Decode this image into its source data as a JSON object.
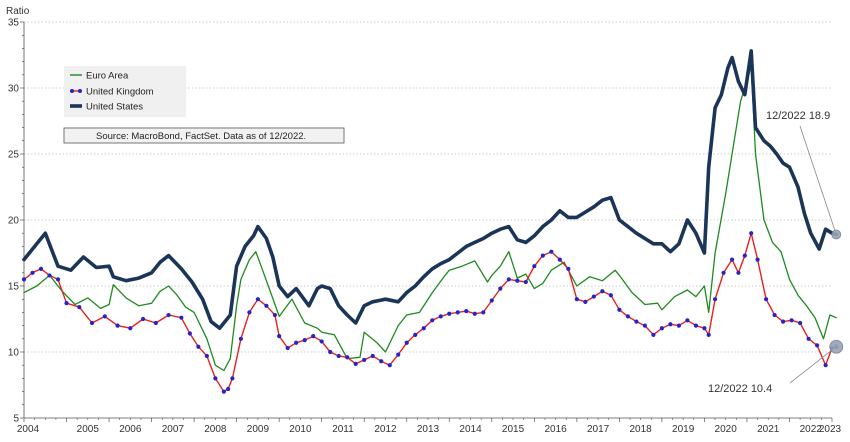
{
  "chart_data": {
    "type": "line",
    "ylabel": "Ratio",
    "ylim": [
      5,
      35
    ],
    "y_ticks": [
      "5",
      "10",
      "15",
      "20",
      "25",
      "30",
      "35"
    ],
    "x_ticks": [
      "2004",
      "2005",
      "2006",
      "2007",
      "2008",
      "2009",
      "2010",
      "2011",
      "2012",
      "2013",
      "2014",
      "2015",
      "2016",
      "2017",
      "2018",
      "2019",
      "2020",
      "2021",
      "2022",
      "2023"
    ],
    "xlim": [
      2004.0,
      2023.0
    ],
    "grid": true,
    "legend_placement": "top-left",
    "source_note": "Source:  MacroBond, FactSet.  Data as of 12/2022.",
    "series": [
      {
        "name": "Euro Area",
        "color": "#1f8a1f",
        "style": "thin-line",
        "points": [
          [
            2004.0,
            14.5
          ],
          [
            2004.3,
            15.0
          ],
          [
            2004.6,
            15.8
          ],
          [
            2004.9,
            14.6
          ],
          [
            2005.2,
            13.6
          ],
          [
            2005.5,
            14.1
          ],
          [
            2005.8,
            13.3
          ],
          [
            2006.0,
            13.6
          ],
          [
            2006.1,
            15.1
          ],
          [
            2006.4,
            14.1
          ],
          [
            2006.7,
            13.5
          ],
          [
            2007.0,
            13.7
          ],
          [
            2007.2,
            14.6
          ],
          [
            2007.4,
            15.0
          ],
          [
            2007.6,
            14.3
          ],
          [
            2007.8,
            13.4
          ],
          [
            2008.0,
            13.0
          ],
          [
            2008.3,
            11.0
          ],
          [
            2008.5,
            9.0
          ],
          [
            2008.7,
            8.6
          ],
          [
            2008.85,
            9.5
          ],
          [
            2009.0,
            13.5
          ],
          [
            2009.1,
            15.5
          ],
          [
            2009.3,
            17.0
          ],
          [
            2009.45,
            17.6
          ],
          [
            2009.6,
            16.3
          ],
          [
            2009.8,
            14.5
          ],
          [
            2010.0,
            12.7
          ],
          [
            2010.3,
            14.0
          ],
          [
            2010.6,
            12.2
          ],
          [
            2010.9,
            11.8
          ],
          [
            2011.0,
            11.5
          ],
          [
            2011.3,
            11.3
          ],
          [
            2011.6,
            9.5
          ],
          [
            2011.9,
            9.6
          ],
          [
            2012.0,
            11.5
          ],
          [
            2012.3,
            10.7
          ],
          [
            2012.5,
            10.0
          ],
          [
            2012.8,
            12.0
          ],
          [
            2013.0,
            12.8
          ],
          [
            2013.3,
            13.0
          ],
          [
            2013.6,
            14.5
          ],
          [
            2013.9,
            15.8
          ],
          [
            2014.0,
            16.2
          ],
          [
            2014.3,
            16.5
          ],
          [
            2014.6,
            16.9
          ],
          [
            2014.9,
            15.3
          ],
          [
            2015.0,
            15.8
          ],
          [
            2015.2,
            16.5
          ],
          [
            2015.4,
            17.6
          ],
          [
            2015.6,
            15.6
          ],
          [
            2015.8,
            15.9
          ],
          [
            2016.0,
            14.8
          ],
          [
            2016.2,
            15.2
          ],
          [
            2016.4,
            16.2
          ],
          [
            2016.7,
            16.8
          ],
          [
            2017.0,
            15.0
          ],
          [
            2017.3,
            15.7
          ],
          [
            2017.6,
            15.4
          ],
          [
            2017.9,
            16.2
          ],
          [
            2018.0,
            15.8
          ],
          [
            2018.3,
            14.5
          ],
          [
            2018.6,
            13.6
          ],
          [
            2018.9,
            13.7
          ],
          [
            2019.0,
            13.2
          ],
          [
            2019.3,
            14.2
          ],
          [
            2019.6,
            14.7
          ],
          [
            2019.8,
            14.2
          ],
          [
            2020.0,
            15.0
          ],
          [
            2020.1,
            13.0
          ],
          [
            2020.25,
            17.5
          ],
          [
            2020.5,
            22.0
          ],
          [
            2020.7,
            26.0
          ],
          [
            2020.85,
            29.0
          ],
          [
            2021.0,
            30.5
          ],
          [
            2021.1,
            31.7
          ],
          [
            2021.2,
            25.0
          ],
          [
            2021.4,
            20.0
          ],
          [
            2021.6,
            18.3
          ],
          [
            2021.8,
            17.6
          ],
          [
            2022.0,
            15.5
          ],
          [
            2022.2,
            14.3
          ],
          [
            2022.4,
            13.5
          ],
          [
            2022.6,
            12.6
          ],
          [
            2022.8,
            11.0
          ],
          [
            2022.95,
            12.8
          ],
          [
            2023.1,
            12.6
          ]
        ]
      },
      {
        "name": "United Kingdom",
        "color": "#e8201e",
        "marker_color": "#2424c8",
        "style": "line-with-markers",
        "points": [
          [
            2004.0,
            15.5
          ],
          [
            2004.2,
            16.0
          ],
          [
            2004.4,
            16.3
          ],
          [
            2004.6,
            15.8
          ],
          [
            2004.8,
            15.5
          ],
          [
            2005.0,
            13.7
          ],
          [
            2005.3,
            13.4
          ],
          [
            2005.6,
            12.2
          ],
          [
            2005.9,
            12.7
          ],
          [
            2006.2,
            12.0
          ],
          [
            2006.5,
            11.8
          ],
          [
            2006.8,
            12.5
          ],
          [
            2007.1,
            12.2
          ],
          [
            2007.4,
            12.8
          ],
          [
            2007.7,
            12.6
          ],
          [
            2007.9,
            11.4
          ],
          [
            2008.1,
            10.4
          ],
          [
            2008.3,
            9.7
          ],
          [
            2008.5,
            8.0
          ],
          [
            2008.7,
            7.0
          ],
          [
            2008.8,
            7.2
          ],
          [
            2008.9,
            8.0
          ],
          [
            2009.1,
            11.0
          ],
          [
            2009.3,
            13.0
          ],
          [
            2009.5,
            14.0
          ],
          [
            2009.7,
            13.5
          ],
          [
            2009.9,
            12.8
          ],
          [
            2010.0,
            11.2
          ],
          [
            2010.2,
            10.3
          ],
          [
            2010.4,
            10.7
          ],
          [
            2010.6,
            10.9
          ],
          [
            2010.8,
            11.2
          ],
          [
            2011.0,
            10.8
          ],
          [
            2011.2,
            10.0
          ],
          [
            2011.4,
            9.7
          ],
          [
            2011.6,
            9.6
          ],
          [
            2011.8,
            9.1
          ],
          [
            2012.0,
            9.4
          ],
          [
            2012.2,
            9.7
          ],
          [
            2012.4,
            9.3
          ],
          [
            2012.6,
            9.0
          ],
          [
            2012.8,
            9.8
          ],
          [
            2013.0,
            10.7
          ],
          [
            2013.2,
            11.3
          ],
          [
            2013.4,
            11.8
          ],
          [
            2013.6,
            12.4
          ],
          [
            2013.8,
            12.7
          ],
          [
            2014.0,
            12.9
          ],
          [
            2014.2,
            13.0
          ],
          [
            2014.4,
            13.1
          ],
          [
            2014.6,
            12.9
          ],
          [
            2014.8,
            13.0
          ],
          [
            2015.0,
            13.9
          ],
          [
            2015.2,
            14.8
          ],
          [
            2015.4,
            15.5
          ],
          [
            2015.6,
            15.4
          ],
          [
            2015.8,
            15.3
          ],
          [
            2016.0,
            16.5
          ],
          [
            2016.2,
            17.3
          ],
          [
            2016.4,
            17.6
          ],
          [
            2016.6,
            17.0
          ],
          [
            2016.8,
            16.3
          ],
          [
            2017.0,
            14.0
          ],
          [
            2017.2,
            13.8
          ],
          [
            2017.4,
            14.2
          ],
          [
            2017.6,
            14.6
          ],
          [
            2017.8,
            14.3
          ],
          [
            2018.0,
            13.2
          ],
          [
            2018.2,
            12.7
          ],
          [
            2018.4,
            12.3
          ],
          [
            2018.6,
            12.0
          ],
          [
            2018.8,
            11.3
          ],
          [
            2019.0,
            11.8
          ],
          [
            2019.2,
            12.1
          ],
          [
            2019.4,
            12.0
          ],
          [
            2019.6,
            12.4
          ],
          [
            2019.8,
            12.0
          ],
          [
            2020.0,
            11.8
          ],
          [
            2020.1,
            11.3
          ],
          [
            2020.25,
            14.0
          ],
          [
            2020.45,
            16.0
          ],
          [
            2020.65,
            17.0
          ],
          [
            2020.8,
            16.0
          ],
          [
            2020.95,
            17.3
          ],
          [
            2021.1,
            19.0
          ],
          [
            2021.25,
            17.0
          ],
          [
            2021.45,
            14.0
          ],
          [
            2021.65,
            12.8
          ],
          [
            2021.85,
            12.3
          ],
          [
            2022.05,
            12.4
          ],
          [
            2022.25,
            12.2
          ],
          [
            2022.45,
            11.0
          ],
          [
            2022.65,
            10.5
          ],
          [
            2022.85,
            9.0
          ],
          [
            2023.0,
            10.3
          ],
          [
            2023.1,
            10.4
          ]
        ]
      },
      {
        "name": "United States",
        "color": "#1b3558",
        "style": "thick-line",
        "points": [
          [
            2004.0,
            17.0
          ],
          [
            2004.3,
            18.2
          ],
          [
            2004.5,
            19.0
          ],
          [
            2004.8,
            16.5
          ],
          [
            2005.1,
            16.2
          ],
          [
            2005.4,
            17.2
          ],
          [
            2005.7,
            16.4
          ],
          [
            2006.0,
            16.5
          ],
          [
            2006.1,
            15.7
          ],
          [
            2006.4,
            15.4
          ],
          [
            2006.7,
            15.6
          ],
          [
            2007.0,
            16.0
          ],
          [
            2007.2,
            16.8
          ],
          [
            2007.4,
            17.3
          ],
          [
            2007.7,
            16.3
          ],
          [
            2007.95,
            15.3
          ],
          [
            2008.2,
            14.0
          ],
          [
            2008.4,
            12.3
          ],
          [
            2008.6,
            11.8
          ],
          [
            2008.85,
            12.8
          ],
          [
            2009.0,
            16.5
          ],
          [
            2009.2,
            18.0
          ],
          [
            2009.4,
            18.8
          ],
          [
            2009.5,
            19.5
          ],
          [
            2009.7,
            18.6
          ],
          [
            2009.85,
            17.2
          ],
          [
            2010.0,
            15.0
          ],
          [
            2010.2,
            14.2
          ],
          [
            2010.4,
            14.8
          ],
          [
            2010.7,
            13.5
          ],
          [
            2010.9,
            14.8
          ],
          [
            2011.0,
            15.0
          ],
          [
            2011.2,
            14.8
          ],
          [
            2011.4,
            13.5
          ],
          [
            2011.6,
            12.8
          ],
          [
            2011.8,
            12.2
          ],
          [
            2012.0,
            13.5
          ],
          [
            2012.2,
            13.8
          ],
          [
            2012.5,
            14.0
          ],
          [
            2012.8,
            13.8
          ],
          [
            2013.0,
            14.5
          ],
          [
            2013.2,
            15.0
          ],
          [
            2013.4,
            15.7
          ],
          [
            2013.6,
            16.3
          ],
          [
            2013.8,
            16.7
          ],
          [
            2014.0,
            17.0
          ],
          [
            2014.2,
            17.5
          ],
          [
            2014.4,
            18.0
          ],
          [
            2014.6,
            18.3
          ],
          [
            2014.8,
            18.6
          ],
          [
            2015.0,
            19.0
          ],
          [
            2015.2,
            19.3
          ],
          [
            2015.4,
            19.5
          ],
          [
            2015.6,
            18.5
          ],
          [
            2015.8,
            18.3
          ],
          [
            2016.0,
            18.8
          ],
          [
            2016.2,
            19.5
          ],
          [
            2016.4,
            20.0
          ],
          [
            2016.6,
            20.7
          ],
          [
            2016.8,
            20.2
          ],
          [
            2017.0,
            20.2
          ],
          [
            2017.2,
            20.6
          ],
          [
            2017.4,
            21.0
          ],
          [
            2017.6,
            21.5
          ],
          [
            2017.8,
            21.7
          ],
          [
            2018.0,
            20.0
          ],
          [
            2018.2,
            19.5
          ],
          [
            2018.4,
            19.0
          ],
          [
            2018.6,
            18.6
          ],
          [
            2018.8,
            18.2
          ],
          [
            2019.0,
            18.2
          ],
          [
            2019.2,
            17.6
          ],
          [
            2019.4,
            18.2
          ],
          [
            2019.6,
            20.0
          ],
          [
            2019.8,
            19.0
          ],
          [
            2020.0,
            17.5
          ],
          [
            2020.1,
            24.0
          ],
          [
            2020.25,
            28.5
          ],
          [
            2020.4,
            29.5
          ],
          [
            2020.55,
            31.5
          ],
          [
            2020.65,
            32.3
          ],
          [
            2020.8,
            30.5
          ],
          [
            2020.95,
            29.5
          ],
          [
            2021.1,
            32.8
          ],
          [
            2021.2,
            27.0
          ],
          [
            2021.4,
            26.0
          ],
          [
            2021.55,
            25.6
          ],
          [
            2021.7,
            25.0
          ],
          [
            2021.85,
            24.3
          ],
          [
            2022.0,
            24.0
          ],
          [
            2022.2,
            22.5
          ],
          [
            2022.35,
            20.5
          ],
          [
            2022.5,
            19.0
          ],
          [
            2022.7,
            17.8
          ],
          [
            2022.85,
            19.3
          ],
          [
            2023.0,
            19.0
          ],
          [
            2023.1,
            18.9
          ]
        ]
      }
    ],
    "annotations": [
      {
        "text": "12/2022 18.9",
        "series": "United States",
        "x": 2023.1,
        "y": 18.9
      },
      {
        "text": "12/2022 10.4",
        "series": "United Kingdom",
        "x": 2023.1,
        "y": 10.4
      }
    ]
  }
}
